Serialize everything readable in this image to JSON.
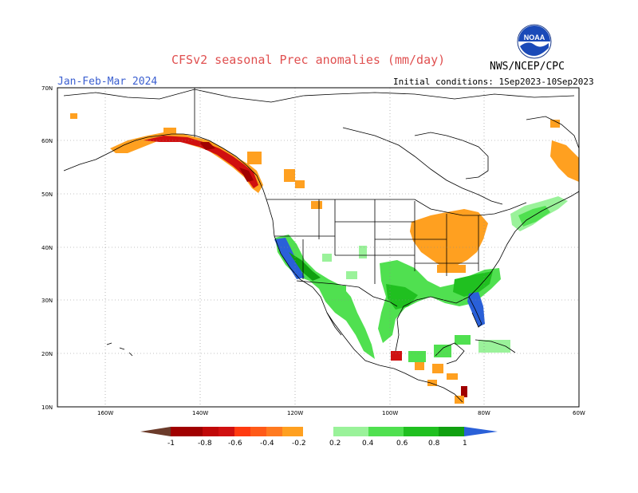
{
  "title": "CFSv2 seasonal Prec anomalies (mm/day)",
  "period": "Jan-Feb-Mar 2024",
  "initial_conditions": "Initial conditions: 1Sep2023-10Sep2023",
  "agency": "NWS/NCEP/CPC",
  "logo_text": "NOAA",
  "lat_labels": [
    "70N",
    "60N",
    "50N",
    "40N",
    "30N",
    "20N",
    "10N"
  ],
  "lon_labels": [
    "160W",
    "140W",
    "120W",
    "100W",
    "80W",
    "60W"
  ],
  "colorbar": {
    "labels": [
      "-1",
      "-0.8",
      "-0.6",
      "-0.4",
      "-0.2",
      "0.2",
      "0.4",
      "0.6",
      "0.8",
      "1"
    ],
    "colors": [
      "#6b3b2a",
      "#a00000",
      "#d01010",
      "#ff3a10",
      "#ff7a20",
      "#ffa020",
      "#ffffff",
      "#9af29a",
      "#50e050",
      "#20c020",
      "#10a010",
      "#2a60d8"
    ]
  }
}
